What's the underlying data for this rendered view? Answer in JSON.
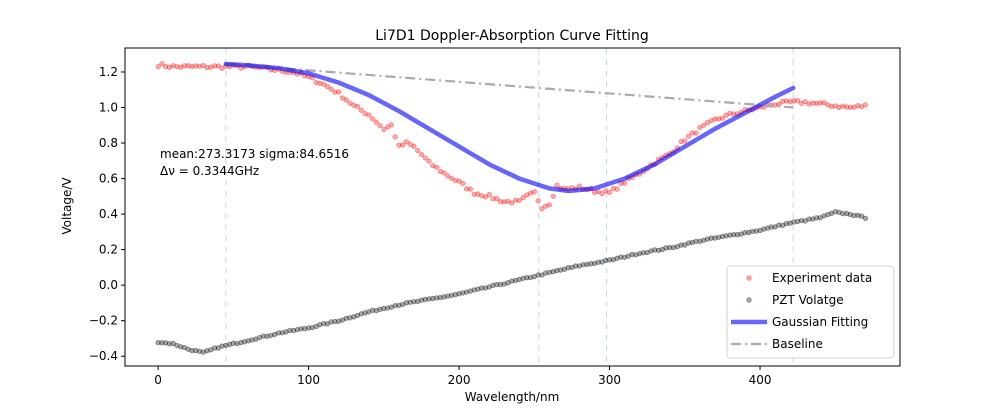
{
  "chart_data": {
    "type": "line",
    "title": "Li7D1 Doppler-Absorption Curve Fitting",
    "xlabel": "Wavelength/nm",
    "ylabel": "Voltage/V",
    "xlim": [
      -22,
      493
    ],
    "ylim": [
      -0.455,
      1.335
    ],
    "xticks": [
      0,
      100,
      200,
      300,
      400
    ],
    "xtick_labels": [
      "0",
      "100",
      "200",
      "300",
      "400"
    ],
    "yticks": [
      -0.4,
      -0.2,
      0.0,
      0.2,
      0.4,
      0.6,
      0.8,
      1.0,
      1.2
    ],
    "ytick_labels": [
      "−0.4",
      "−0.2",
      "0.0",
      "0.2",
      "0.4",
      "0.6",
      "0.8",
      "1.0",
      "1.2"
    ],
    "grid": false,
    "legend_position": "bottom-right",
    "vertical_reference_lines_x": [
      45,
      253,
      298,
      422
    ],
    "annotations": [
      "mean:273.3173 sigma:84.6516",
      "Δν = 0.3344GHz"
    ],
    "series": [
      {
        "name": "Experiment data",
        "style": "markers",
        "color": "#ff0000",
        "x": [
          0,
          10,
          20,
          30,
          40,
          50,
          60,
          70,
          80,
          90,
          100,
          110,
          120,
          130,
          140,
          150,
          155,
          160,
          165,
          170,
          180,
          190,
          200,
          210,
          220,
          230,
          240,
          245,
          250,
          255,
          260,
          265,
          270,
          280,
          290,
          300,
          310,
          320,
          330,
          340,
          350,
          360,
          370,
          380,
          390,
          400,
          410,
          420,
          430,
          440,
          450,
          460,
          470
        ],
        "y": [
          1.24,
          1.23,
          1.23,
          1.23,
          1.23,
          1.23,
          1.23,
          1.22,
          1.21,
          1.2,
          1.17,
          1.13,
          1.08,
          1.01,
          0.96,
          0.88,
          0.9,
          0.78,
          0.8,
          0.78,
          0.69,
          0.63,
          0.58,
          0.52,
          0.5,
          0.47,
          0.47,
          0.5,
          0.52,
          0.44,
          0.46,
          0.56,
          0.54,
          0.55,
          0.53,
          0.52,
          0.58,
          0.63,
          0.69,
          0.74,
          0.82,
          0.88,
          0.93,
          0.96,
          0.98,
          1.0,
          1.02,
          1.03,
          1.03,
          1.02,
          1.01,
          1.0,
          1.01
        ]
      },
      {
        "name": "PZT Volatge",
        "style": "markers",
        "color": "#000000",
        "x": [
          0,
          10,
          20,
          30,
          40,
          60,
          80,
          100,
          120,
          140,
          160,
          180,
          200,
          220,
          240,
          260,
          280,
          300,
          320,
          340,
          360,
          380,
          400,
          420,
          440,
          450,
          460,
          470
        ],
        "y": [
          -0.32,
          -0.33,
          -0.36,
          -0.38,
          -0.35,
          -0.31,
          -0.27,
          -0.24,
          -0.2,
          -0.15,
          -0.11,
          -0.08,
          -0.05,
          -0.01,
          0.03,
          0.07,
          0.11,
          0.14,
          0.18,
          0.21,
          0.25,
          0.28,
          0.31,
          0.35,
          0.38,
          0.41,
          0.4,
          0.38
        ]
      },
      {
        "name": "Gaussian Fitting",
        "style": "line",
        "color": "#0000ff",
        "x": [
          45,
          60,
          80,
          100,
          120,
          140,
          160,
          180,
          200,
          220,
          240,
          260,
          273,
          290,
          310,
          330,
          350,
          370,
          390,
          410,
          422
        ],
        "y": [
          1.245,
          1.237,
          1.222,
          1.192,
          1.14,
          1.07,
          0.98,
          0.88,
          0.78,
          0.68,
          0.6,
          0.545,
          0.53,
          0.545,
          0.6,
          0.68,
          0.78,
          0.88,
          0.97,
          1.06,
          1.11
        ]
      },
      {
        "name": "Baseline",
        "style": "dashdot",
        "color": "#aaaaaa",
        "x": [
          45,
          422
        ],
        "y": [
          1.245,
          1.0
        ]
      }
    ]
  }
}
